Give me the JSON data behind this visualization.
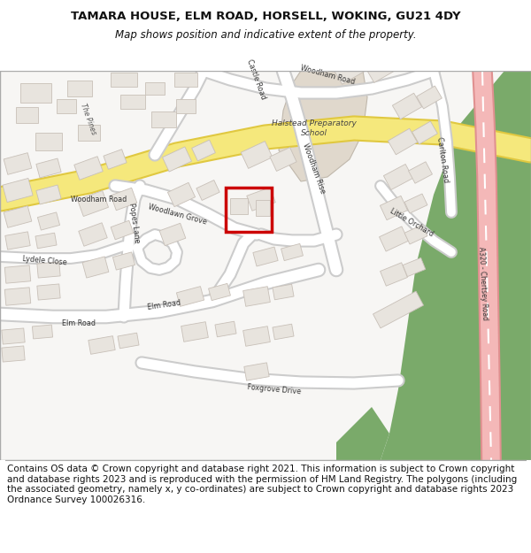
{
  "title_line1": "TAMARA HOUSE, ELM ROAD, HORSELL, WOKING, GU21 4DY",
  "title_line2": "Map shows position and indicative extent of the property.",
  "footer_text": "Contains OS data © Crown copyright and database right 2021. This information is subject to Crown copyright and database rights 2023 and is reproduced with the permission of HM Land Registry. The polygons (including the associated geometry, namely x, y co-ordinates) are subject to Crown copyright and database rights 2023 Ordnance Survey 100026316.",
  "title_fontsize": 9.5,
  "subtitle_fontsize": 8.5,
  "footer_fontsize": 7.5,
  "background_color": "#ffffff",
  "map_bg": "#f7f6f4",
  "building_fill": "#e8e4de",
  "building_edge": "#c8c0b8",
  "school_fill": "#e0d8cc",
  "school_edge": "#c0b8ac",
  "road_fill": "#ffffff",
  "road_edge": "#cccccc",
  "yellow_fill": "#f5e87c",
  "yellow_edge": "#e0c840",
  "pink_fill": "#f4b8b8",
  "pink_edge": "#e09090",
  "green_fill": "#7aaa6a",
  "red_color": "#cc0000",
  "figsize": [
    6.0,
    6.25
  ],
  "dpi": 100
}
